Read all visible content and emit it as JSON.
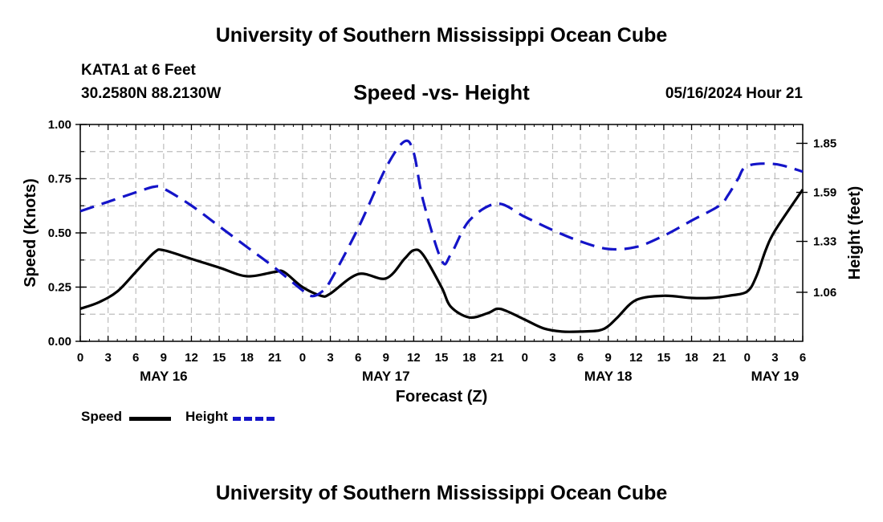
{
  "header": {
    "title": "University of Southern Mississippi Ocean Cube",
    "station": "KATA1 at 6 Feet",
    "coordinates": "30.2580N  88.2130W",
    "chart_title": "Speed -vs- Height",
    "datetime": "05/16/2024 Hour 21"
  },
  "footer": {
    "title": "University of Southern Mississippi Ocean Cube"
  },
  "legend": {
    "speed_label": "Speed",
    "height_label": "Height",
    "speed_color": "#000000",
    "height_color": "#1414c8"
  },
  "chart_data": {
    "type": "line",
    "title": "Speed -vs- Height",
    "xlabel": "Forecast (Z)",
    "ylabel": "Speed (Knots)",
    "y2label": "Height (feet)",
    "xlim": [
      0,
      78
    ],
    "ylim": [
      0,
      1.0
    ],
    "y2lim": [
      0.8,
      1.95
    ],
    "grid": true,
    "legend_position": "bottom-left",
    "x_ticks": [
      0,
      3,
      6,
      9,
      12,
      15,
      18,
      21,
      24,
      27,
      30,
      33,
      36,
      39,
      42,
      45,
      48,
      51,
      54,
      57,
      60,
      63,
      66,
      69,
      72,
      75,
      78
    ],
    "x_tick_labels": [
      "0",
      "3",
      "6",
      "9",
      "12",
      "15",
      "18",
      "21",
      "0",
      "3",
      "6",
      "9",
      "12",
      "15",
      "18",
      "21",
      "0",
      "3",
      "6",
      "9",
      "12",
      "15",
      "18",
      "21",
      "0",
      "3",
      "6"
    ],
    "date_labels": [
      {
        "x": 9,
        "label": "MAY 16"
      },
      {
        "x": 33,
        "label": "MAY 17"
      },
      {
        "x": 57,
        "label": "MAY 18"
      },
      {
        "x": 75,
        "label": "MAY 19"
      }
    ],
    "y_ticks": [
      0,
      0.25,
      0.5,
      0.75,
      1.0
    ],
    "y_tick_labels": [
      "0.00",
      "0.25",
      "0.50",
      "0.75",
      "1.00"
    ],
    "y2_ticks": [
      1.06,
      1.33,
      1.59,
      1.85
    ],
    "y2_tick_labels": [
      "1.06",
      "1.33",
      "1.59",
      "1.85"
    ],
    "series": [
      {
        "name": "Speed",
        "axis": "left",
        "color": "#000000",
        "style": "solid",
        "x": [
          0,
          2,
          4,
          6,
          8,
          9,
          12,
          15,
          18,
          21,
          22,
          24,
          26,
          27,
          30,
          33,
          35,
          36,
          37,
          39,
          40,
          42,
          44,
          45,
          46,
          48,
          50,
          52,
          54,
          56,
          57,
          58,
          60,
          63,
          66,
          68,
          70,
          72,
          73,
          74,
          75,
          78
        ],
        "values": [
          0.15,
          0.18,
          0.23,
          0.32,
          0.41,
          0.42,
          0.38,
          0.34,
          0.3,
          0.32,
          0.32,
          0.25,
          0.21,
          0.22,
          0.31,
          0.29,
          0.38,
          0.42,
          0.4,
          0.25,
          0.16,
          0.11,
          0.13,
          0.15,
          0.14,
          0.1,
          0.06,
          0.045,
          0.045,
          0.05,
          0.07,
          0.11,
          0.19,
          0.21,
          0.2,
          0.2,
          0.21,
          0.23,
          0.3,
          0.42,
          0.51,
          0.7
        ]
      },
      {
        "name": "Height",
        "axis": "right",
        "color": "#1414c8",
        "style": "dashed",
        "x": [
          0,
          3,
          6,
          8,
          9,
          12,
          15,
          18,
          21,
          24,
          25,
          26,
          27,
          30,
          33,
          35,
          36,
          37,
          39,
          40,
          42,
          45,
          48,
          51,
          54,
          57,
          60,
          63,
          66,
          69,
          70,
          71,
          72,
          75,
          78
        ],
        "values": [
          1.49,
          1.54,
          1.59,
          1.62,
          1.61,
          1.52,
          1.41,
          1.3,
          1.19,
          1.07,
          1.04,
          1.06,
          1.12,
          1.4,
          1.72,
          1.86,
          1.8,
          1.55,
          1.23,
          1.26,
          1.44,
          1.53,
          1.46,
          1.39,
          1.33,
          1.29,
          1.3,
          1.36,
          1.44,
          1.52,
          1.58,
          1.66,
          1.73,
          1.74,
          1.7
        ]
      }
    ]
  }
}
